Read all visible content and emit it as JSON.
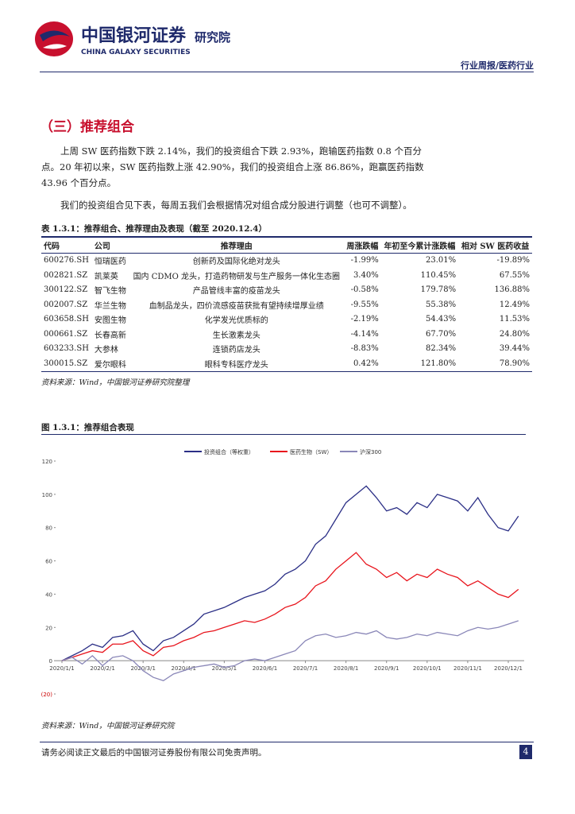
{
  "header": {
    "logo_cn": "中国银河证券",
    "logo_en": "CHINA GALAXY SECURITIES",
    "institute": "研究院",
    "report_type": "行业周报/医药行业"
  },
  "section": {
    "title": "（三）推荐组合",
    "paragraphs": [
      "上周 SW 医药指数下跌 2.14%，我们的投资组合下跌 2.93%，跑输医药指数 0.8 个百分点。20 年初以来，SW 医药指数上涨 42.90%，我们的投资组合上涨 86.86%，跑赢医药指数 43.96 个百分点。",
      "我们的投资组合见下表，每周五我们会根据情况对组合成分股进行调整（也可不调整）。"
    ]
  },
  "table": {
    "caption": "表 1.3.1：推荐组合、推荐理由及表现（截至 2020.12.4）",
    "header": [
      "代码",
      "公司",
      "推荐理由",
      "周涨跌幅",
      "年初至今累计涨跌幅",
      "相对 SW 医药收益"
    ],
    "rows": [
      [
        "600276.SH",
        "恒瑞医药",
        "创新药及国际化绝对龙头",
        "-1.99%",
        "23.01%",
        "-19.89%"
      ],
      [
        "002821.SZ",
        "凯莱英",
        "国内 CDMO 龙头，打造药物研发与生产服务一体化生态圈",
        "3.40%",
        "110.45%",
        "67.55%"
      ],
      [
        "300122.SZ",
        "智飞生物",
        "产品管线丰富的疫苗龙头",
        "-0.58%",
        "179.78%",
        "136.88%"
      ],
      [
        "002007.SZ",
        "华兰生物",
        "血制品龙头，四价流感疫苗获批有望持续增厚业绩",
        "-9.55%",
        "55.38%",
        "12.49%"
      ],
      [
        "603658.SH",
        "安图生物",
        "化学发光优质标的",
        "-2.19%",
        "54.43%",
        "11.53%"
      ],
      [
        "000661.SZ",
        "长春高新",
        "生长激素龙头",
        "-4.14%",
        "67.70%",
        "24.80%"
      ],
      [
        "603233.SH",
        "大参林",
        "连锁药店龙头",
        "-8.83%",
        "82.34%",
        "39.44%"
      ],
      [
        "300015.SZ",
        "爱尔眼科",
        "眼科专科医疗龙头",
        "0.42%",
        "121.80%",
        "78.90%"
      ]
    ],
    "source": "资料来源：Wind，中国银河证券研究院整理"
  },
  "figure": {
    "caption": "图 1.3.1：推荐组合表现",
    "source": "资料来源：Wind，中国银河证券研究院"
  },
  "chart": {
    "type": "line",
    "categories": [
      "2020/1/1",
      null,
      null,
      null,
      "2020/2/1",
      null,
      null,
      null,
      "2020/3/1",
      null,
      null,
      null,
      "2020/4/1",
      null,
      null,
      null,
      "2020/5/1",
      null,
      null,
      null,
      "2020/6/1",
      null,
      null,
      null,
      "2020/7/1",
      null,
      null,
      null,
      "2020/8/1",
      null,
      null,
      null,
      "2020/9/1",
      null,
      null,
      null,
      "2020/10/1",
      null,
      null,
      null,
      "2020/11/1",
      null,
      null,
      null,
      "2020/12/1",
      null
    ],
    "ylim": [
      -20,
      120
    ],
    "yticks": [
      {
        "value": -20,
        "label": "(20)"
      },
      0,
      20,
      40,
      60,
      80,
      100,
      120
    ],
    "series": [
      {
        "name": "投资组合（等权重）",
        "color": "#2b2f86",
        "values": [
          0,
          3,
          6,
          10,
          8,
          14,
          15,
          18,
          10,
          6,
          12,
          14,
          18,
          22,
          28,
          30,
          32,
          35,
          38,
          40,
          42,
          46,
          52,
          55,
          60,
          70,
          75,
          85,
          95,
          100,
          105,
          98,
          90,
          92,
          88,
          95,
          92,
          100,
          98,
          96,
          90,
          98,
          88,
          80,
          78,
          86.9
        ]
      },
      {
        "name": "医药生物（SW）",
        "color": "#e8141c",
        "values": [
          0,
          2,
          4,
          6,
          5,
          10,
          10,
          12,
          6,
          3,
          8,
          9,
          12,
          14,
          17,
          18,
          20,
          22,
          24,
          23,
          25,
          28,
          32,
          34,
          38,
          45,
          48,
          55,
          60,
          65,
          58,
          55,
          50,
          53,
          48,
          52,
          50,
          55,
          52,
          50,
          45,
          48,
          44,
          40,
          38,
          42.9
        ]
      },
      {
        "name": "沪深300",
        "color": "#8a87b8",
        "values": [
          0,
          2,
          -2,
          3,
          -3,
          2,
          3,
          0,
          -6,
          -10,
          -12,
          -8,
          -6,
          -4,
          -3,
          -2,
          -4,
          -3,
          0,
          1,
          0,
          2,
          4,
          6,
          12,
          15,
          16,
          14,
          15,
          17,
          16,
          18,
          14,
          13,
          14,
          16,
          15,
          17,
          16,
          15,
          18,
          20,
          19,
          20,
          22,
          24
        ]
      }
    ]
  },
  "footer": {
    "disclaimer": "请务必阅读正文最后的中国银河证券股份有限公司免责声明。",
    "page": "4"
  }
}
